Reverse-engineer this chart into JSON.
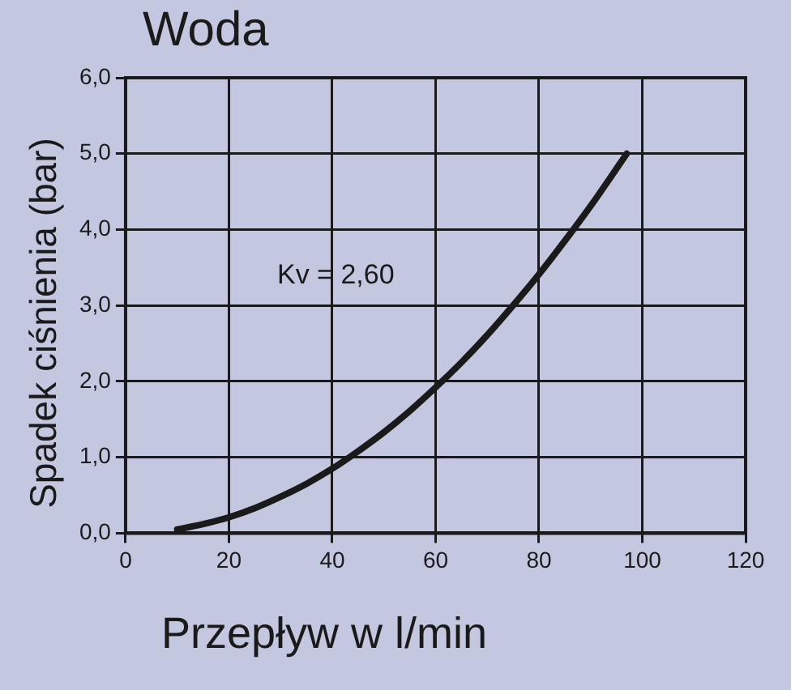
{
  "chart_data": {
    "type": "line",
    "title": "Woda",
    "xlabel": "Przepływ w l/min",
    "ylabel": "Spadek ciśnienia (bar)",
    "x": [
      10,
      15,
      20,
      25,
      30,
      35,
      40,
      45,
      50,
      55,
      60,
      65,
      70,
      75,
      80,
      85,
      90,
      97
    ],
    "series": [
      {
        "color": "#1a1a1a",
        "values": [
          0.05,
          0.12,
          0.21,
          0.33,
          0.48,
          0.65,
          0.85,
          1.08,
          1.33,
          1.61,
          1.92,
          2.25,
          2.61,
          3.0,
          3.41,
          3.85,
          4.31,
          5.0
        ]
      }
    ],
    "xlim": [
      0,
      120
    ],
    "xticks": [
      0,
      20,
      40,
      60,
      80,
      100,
      120
    ],
    "ylim": [
      0,
      6
    ],
    "yticks": [
      {
        "value": 0,
        "label": "0,0"
      },
      {
        "value": 1,
        "label": "1,0"
      },
      {
        "value": 2,
        "label": "2,0"
      },
      {
        "value": 3,
        "label": "3,0"
      },
      {
        "value": 4,
        "label": "4,0"
      },
      {
        "value": 5,
        "label": "5,0"
      },
      {
        "value": 6,
        "label": "6,0"
      }
    ],
    "grid": true,
    "legend": false,
    "marker": "none",
    "line_style": "solid",
    "annotations": [
      "Kv = 2,60"
    ]
  }
}
